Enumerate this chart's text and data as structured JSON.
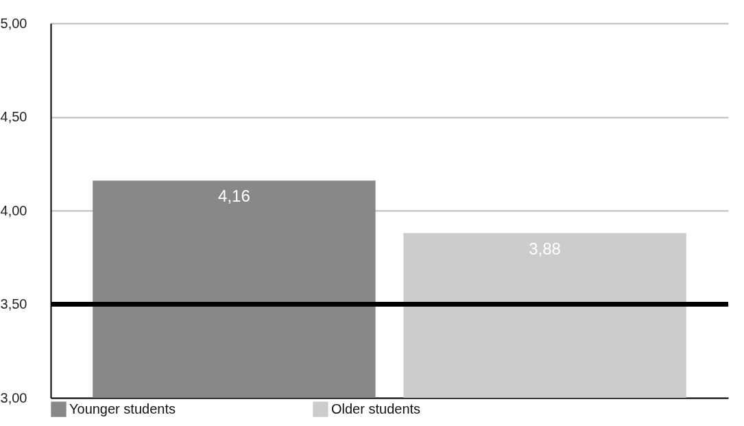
{
  "chart_data": {
    "type": "bar",
    "categories": [
      null
    ],
    "series": [
      {
        "name": "Younger students",
        "color": "#888888",
        "values": [
          4.16
        ],
        "value_labels": [
          "4,16"
        ]
      },
      {
        "name": "Older students",
        "color": "#cccccc",
        "values": [
          3.88
        ],
        "value_labels": [
          "3,88"
        ]
      }
    ],
    "ylim": [
      3,
      5
    ],
    "yticks": [
      {
        "value": 3,
        "label": "3,00"
      },
      {
        "value": 3.5,
        "label": "3,50"
      },
      {
        "value": 4,
        "label": "4,00"
      },
      {
        "value": 4.5,
        "label": "4,50"
      },
      {
        "value": 5,
        "label": "5,00"
      }
    ],
    "grid": "y",
    "legend": "bottom",
    "ref_lines": [
      {
        "axis": "y",
        "value": 3.5,
        "color": "#000000"
      }
    ]
  }
}
